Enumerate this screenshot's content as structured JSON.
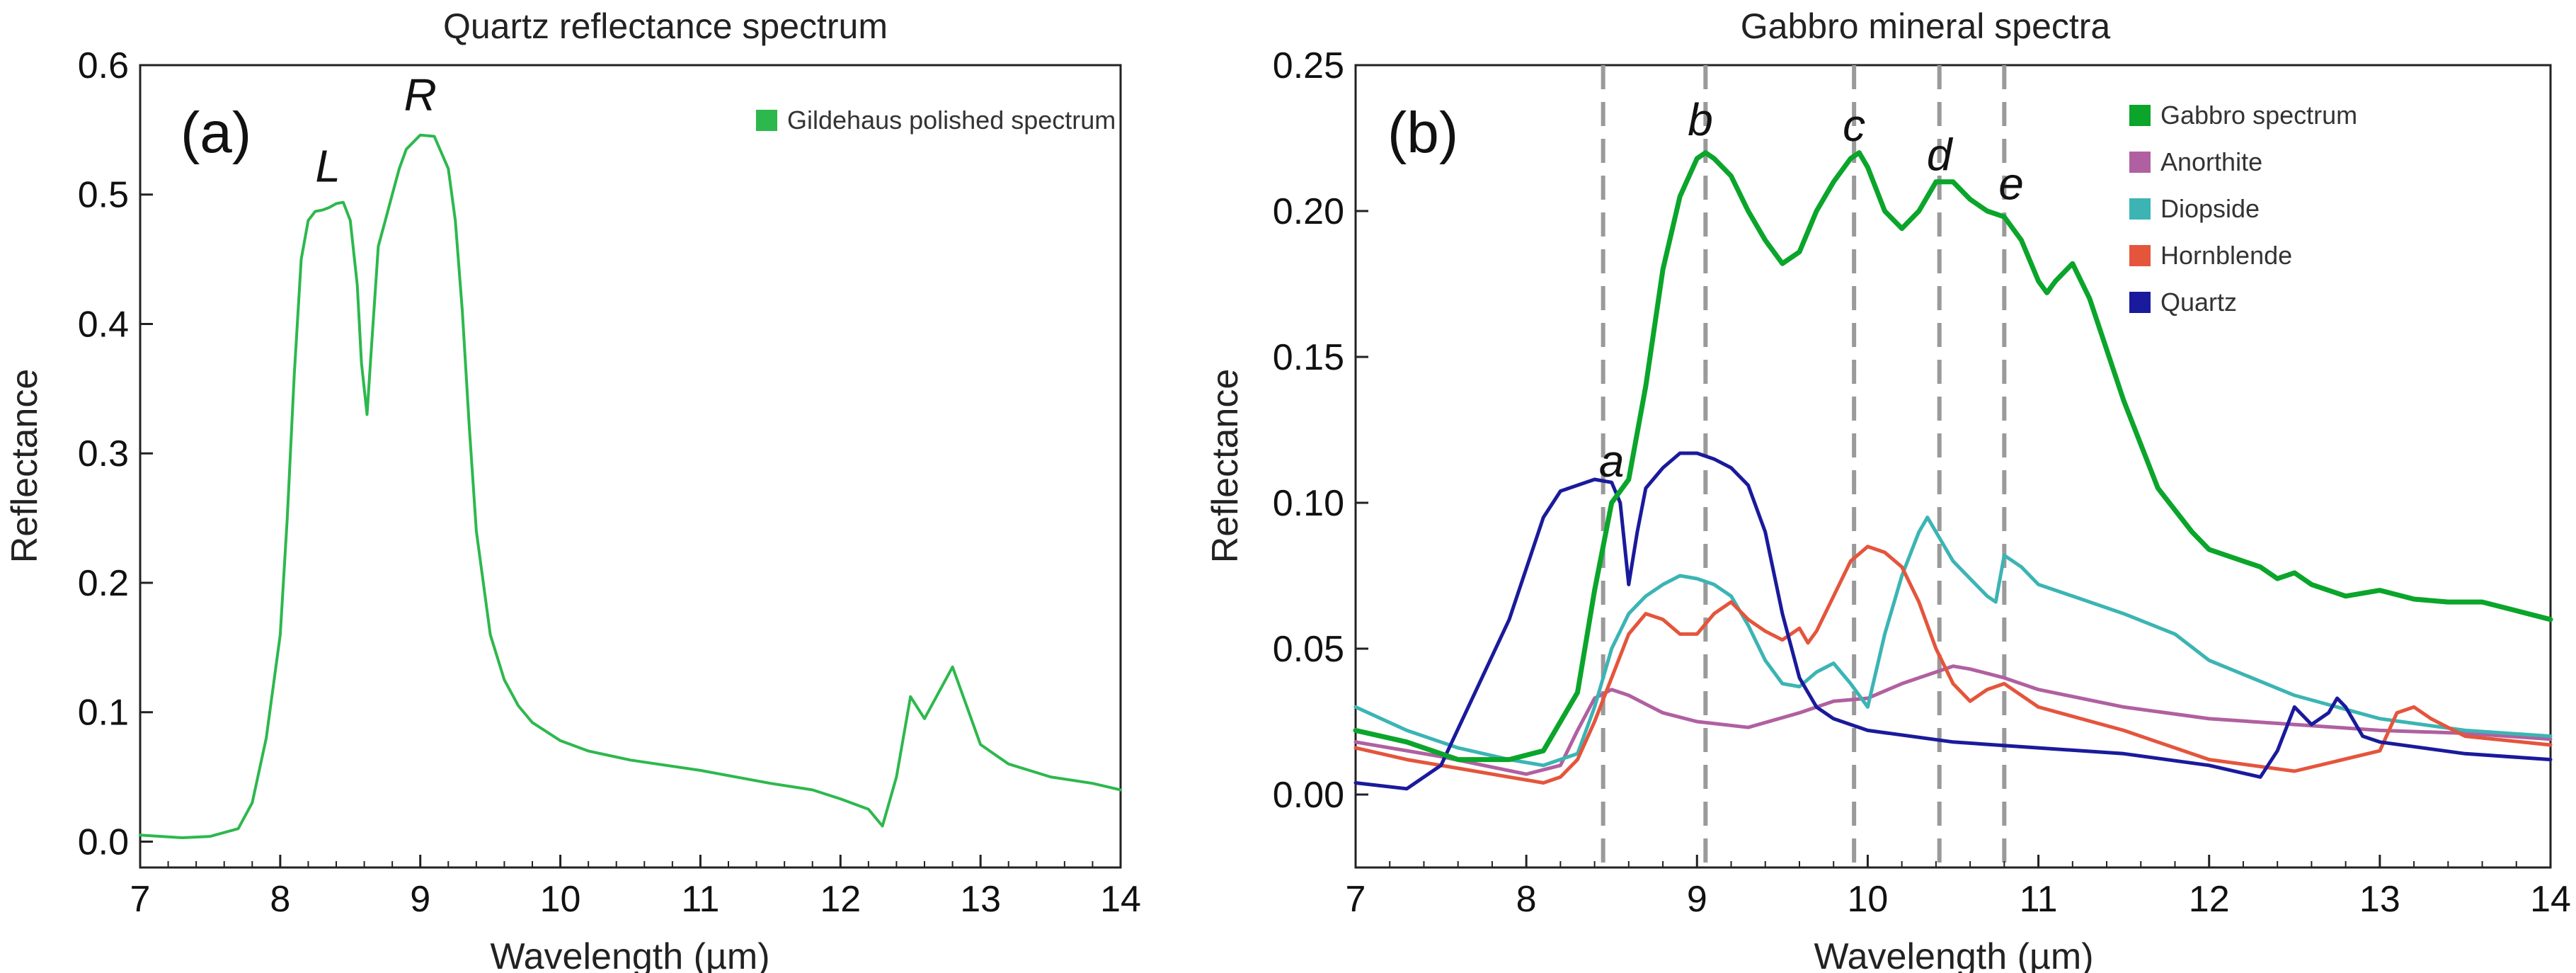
{
  "chart_data": [
    {
      "type": "line",
      "title": "Quartz reflectance spectrum",
      "panel_label": "(a)",
      "xlabel": "Wavelength (µm)",
      "ylabel": "Reflectance",
      "xlim": [
        7,
        14
      ],
      "ylim": [
        -0.02,
        0.6
      ],
      "xticks": [
        7,
        8,
        9,
        10,
        11,
        12,
        13,
        14
      ],
      "yticks": [
        0.0,
        0.1,
        0.2,
        0.3,
        0.4,
        0.5,
        0.6
      ],
      "ytick_labels": [
        "0.0",
        "0.1",
        "0.2",
        "0.3",
        "0.4",
        "0.5",
        "0.6"
      ],
      "legend_position": "top-right",
      "annotations": [
        {
          "text": "L",
          "x": 8.34,
          "y": 0.51
        },
        {
          "text": "R",
          "x": 9.0,
          "y": 0.565
        }
      ],
      "series": [
        {
          "name": "Gildehaus polished spectrum",
          "color": "#2db84d",
          "x": [
            7.0,
            7.3,
            7.5,
            7.7,
            7.8,
            7.9,
            8.0,
            8.05,
            8.1,
            8.15,
            8.2,
            8.25,
            8.3,
            8.35,
            8.4,
            8.45,
            8.5,
            8.55,
            8.58,
            8.62,
            8.65,
            8.7,
            8.75,
            8.8,
            8.85,
            8.9,
            9.0,
            9.1,
            9.2,
            9.25,
            9.3,
            9.35,
            9.4,
            9.5,
            9.6,
            9.7,
            9.8,
            10.0,
            10.2,
            10.5,
            11.0,
            11.5,
            11.8,
            12.0,
            12.2,
            12.3,
            12.4,
            12.5,
            12.6,
            12.7,
            12.8,
            12.9,
            13.0,
            13.2,
            13.5,
            13.8,
            14.0
          ],
          "values": [
            0.005,
            0.003,
            0.004,
            0.01,
            0.03,
            0.08,
            0.16,
            0.25,
            0.36,
            0.45,
            0.48,
            0.487,
            0.488,
            0.49,
            0.493,
            0.494,
            0.48,
            0.43,
            0.37,
            0.33,
            0.38,
            0.46,
            0.48,
            0.5,
            0.52,
            0.535,
            0.546,
            0.545,
            0.52,
            0.48,
            0.41,
            0.32,
            0.24,
            0.16,
            0.125,
            0.105,
            0.092,
            0.078,
            0.07,
            0.063,
            0.055,
            0.045,
            0.04,
            0.033,
            0.025,
            0.012,
            0.05,
            0.112,
            0.095,
            0.115,
            0.135,
            0.105,
            0.075,
            0.06,
            0.05,
            0.045,
            0.04
          ]
        }
      ]
    },
    {
      "type": "line",
      "title": "Gabbro mineral spectra",
      "panel_label": "(b)",
      "xlabel": "Wavelength (µm)",
      "ylabel": "Reflectance",
      "xlim": [
        7,
        14
      ],
      "ylim": [
        -0.025,
        0.25
      ],
      "xticks": [
        7,
        8,
        9,
        10,
        11,
        12,
        13,
        14
      ],
      "yticks": [
        0.0,
        0.05,
        0.1,
        0.15,
        0.2,
        0.25
      ],
      "ytick_labels": [
        "0.00",
        "0.05",
        "0.10",
        "0.15",
        "0.20",
        "0.25"
      ],
      "legend_position": "top-right",
      "vlines": [
        8.45,
        9.05,
        9.92,
        10.42,
        10.8
      ],
      "annotations": [
        {
          "text": "a",
          "x": 8.5,
          "y": 0.109
        },
        {
          "text": "b",
          "x": 9.02,
          "y": 0.226
        },
        {
          "text": "c",
          "x": 9.92,
          "y": 0.224
        },
        {
          "text": "d",
          "x": 10.42,
          "y": 0.214
        },
        {
          "text": "e",
          "x": 10.84,
          "y": 0.204
        }
      ],
      "series": [
        {
          "name": "Gabbro spectrum",
          "color": "#0aa52a",
          "x": [
            7.0,
            7.3,
            7.6,
            7.9,
            8.1,
            8.3,
            8.4,
            8.5,
            8.6,
            8.7,
            8.8,
            8.9,
            9.0,
            9.05,
            9.1,
            9.2,
            9.3,
            9.4,
            9.5,
            9.6,
            9.7,
            9.8,
            9.9,
            9.95,
            10.0,
            10.1,
            10.2,
            10.3,
            10.4,
            10.5,
            10.6,
            10.7,
            10.8,
            10.9,
            11.0,
            11.05,
            11.1,
            11.2,
            11.3,
            11.5,
            11.7,
            11.9,
            12.0,
            12.3,
            12.4,
            12.5,
            12.6,
            12.8,
            13.0,
            13.2,
            13.4,
            13.6,
            13.8,
            14.0
          ],
          "values": [
            0.022,
            0.018,
            0.012,
            0.012,
            0.015,
            0.035,
            0.07,
            0.1,
            0.108,
            0.14,
            0.18,
            0.205,
            0.218,
            0.22,
            0.218,
            0.212,
            0.2,
            0.19,
            0.182,
            0.186,
            0.2,
            0.21,
            0.218,
            0.22,
            0.215,
            0.2,
            0.194,
            0.2,
            0.21,
            0.21,
            0.204,
            0.2,
            0.198,
            0.19,
            0.176,
            0.172,
            0.176,
            0.182,
            0.17,
            0.135,
            0.105,
            0.09,
            0.084,
            0.078,
            0.074,
            0.076,
            0.072,
            0.068,
            0.07,
            0.067,
            0.066,
            0.066,
            0.063,
            0.06
          ]
        },
        {
          "name": "Anorthite",
          "color": "#b060a0",
          "x": [
            7.0,
            7.5,
            8.0,
            8.2,
            8.3,
            8.4,
            8.5,
            8.6,
            8.7,
            8.8,
            9.0,
            9.3,
            9.6,
            9.8,
            10.0,
            10.2,
            10.4,
            10.5,
            10.6,
            10.8,
            11.0,
            11.5,
            12.0,
            12.5,
            13.0,
            13.5,
            14.0
          ],
          "values": [
            0.018,
            0.013,
            0.007,
            0.01,
            0.022,
            0.033,
            0.036,
            0.034,
            0.031,
            0.028,
            0.025,
            0.023,
            0.028,
            0.032,
            0.033,
            0.038,
            0.042,
            0.044,
            0.043,
            0.04,
            0.036,
            0.03,
            0.026,
            0.024,
            0.022,
            0.021,
            0.019
          ]
        },
        {
          "name": "Diopside",
          "color": "#3cb4b4",
          "x": [
            7.0,
            7.3,
            7.6,
            7.9,
            8.1,
            8.3,
            8.4,
            8.5,
            8.6,
            8.7,
            8.8,
            8.9,
            9.0,
            9.1,
            9.2,
            9.3,
            9.4,
            9.5,
            9.6,
            9.7,
            9.8,
            9.9,
            10.0,
            10.1,
            10.2,
            10.3,
            10.35,
            10.4,
            10.5,
            10.6,
            10.7,
            10.75,
            10.8,
            10.9,
            11.0,
            11.2,
            11.5,
            11.8,
            12.0,
            12.5,
            13.0,
            13.5,
            14.0
          ],
          "values": [
            0.03,
            0.022,
            0.016,
            0.012,
            0.01,
            0.014,
            0.03,
            0.05,
            0.062,
            0.068,
            0.072,
            0.075,
            0.074,
            0.072,
            0.068,
            0.058,
            0.046,
            0.038,
            0.037,
            0.042,
            0.045,
            0.038,
            0.03,
            0.055,
            0.075,
            0.09,
            0.095,
            0.09,
            0.08,
            0.074,
            0.068,
            0.066,
            0.082,
            0.078,
            0.072,
            0.068,
            0.062,
            0.055,
            0.046,
            0.034,
            0.026,
            0.022,
            0.02
          ]
        },
        {
          "name": "Hornblende",
          "color": "#e4553c",
          "x": [
            7.0,
            7.3,
            7.6,
            7.9,
            8.1,
            8.2,
            8.3,
            8.4,
            8.5,
            8.6,
            8.7,
            8.8,
            8.9,
            9.0,
            9.1,
            9.2,
            9.3,
            9.4,
            9.5,
            9.6,
            9.65,
            9.7,
            9.8,
            9.9,
            10.0,
            10.1,
            10.2,
            10.3,
            10.4,
            10.5,
            10.6,
            10.65,
            10.7,
            10.8,
            10.9,
            11.0,
            11.5,
            12.0,
            12.5,
            13.0,
            13.1,
            13.2,
            13.3,
            13.5,
            14.0
          ],
          "values": [
            0.016,
            0.012,
            0.009,
            0.006,
            0.004,
            0.006,
            0.012,
            0.025,
            0.04,
            0.055,
            0.062,
            0.06,
            0.055,
            0.055,
            0.062,
            0.066,
            0.06,
            0.056,
            0.053,
            0.057,
            0.052,
            0.056,
            0.068,
            0.08,
            0.085,
            0.083,
            0.078,
            0.066,
            0.05,
            0.038,
            0.032,
            0.034,
            0.036,
            0.038,
            0.034,
            0.03,
            0.022,
            0.012,
            0.008,
            0.015,
            0.028,
            0.03,
            0.026,
            0.02,
            0.017
          ]
        },
        {
          "name": "Quartz",
          "color": "#1a1a9c",
          "x": [
            7.0,
            7.3,
            7.5,
            7.7,
            7.9,
            8.1,
            8.2,
            8.3,
            8.4,
            8.5,
            8.55,
            8.6,
            8.65,
            8.7,
            8.8,
            8.9,
            9.0,
            9.1,
            9.2,
            9.3,
            9.4,
            9.5,
            9.6,
            9.7,
            9.8,
            10.0,
            10.5,
            11.0,
            11.5,
            12.0,
            12.3,
            12.4,
            12.5,
            12.6,
            12.7,
            12.75,
            12.8,
            12.9,
            13.0,
            13.5,
            14.0
          ],
          "values": [
            0.004,
            0.002,
            0.01,
            0.035,
            0.06,
            0.095,
            0.104,
            0.106,
            0.108,
            0.107,
            0.1,
            0.072,
            0.09,
            0.105,
            0.112,
            0.117,
            0.117,
            0.115,
            0.112,
            0.106,
            0.09,
            0.062,
            0.04,
            0.03,
            0.026,
            0.022,
            0.018,
            0.016,
            0.014,
            0.01,
            0.006,
            0.015,
            0.03,
            0.024,
            0.028,
            0.033,
            0.03,
            0.02,
            0.018,
            0.014,
            0.012
          ]
        }
      ]
    }
  ]
}
